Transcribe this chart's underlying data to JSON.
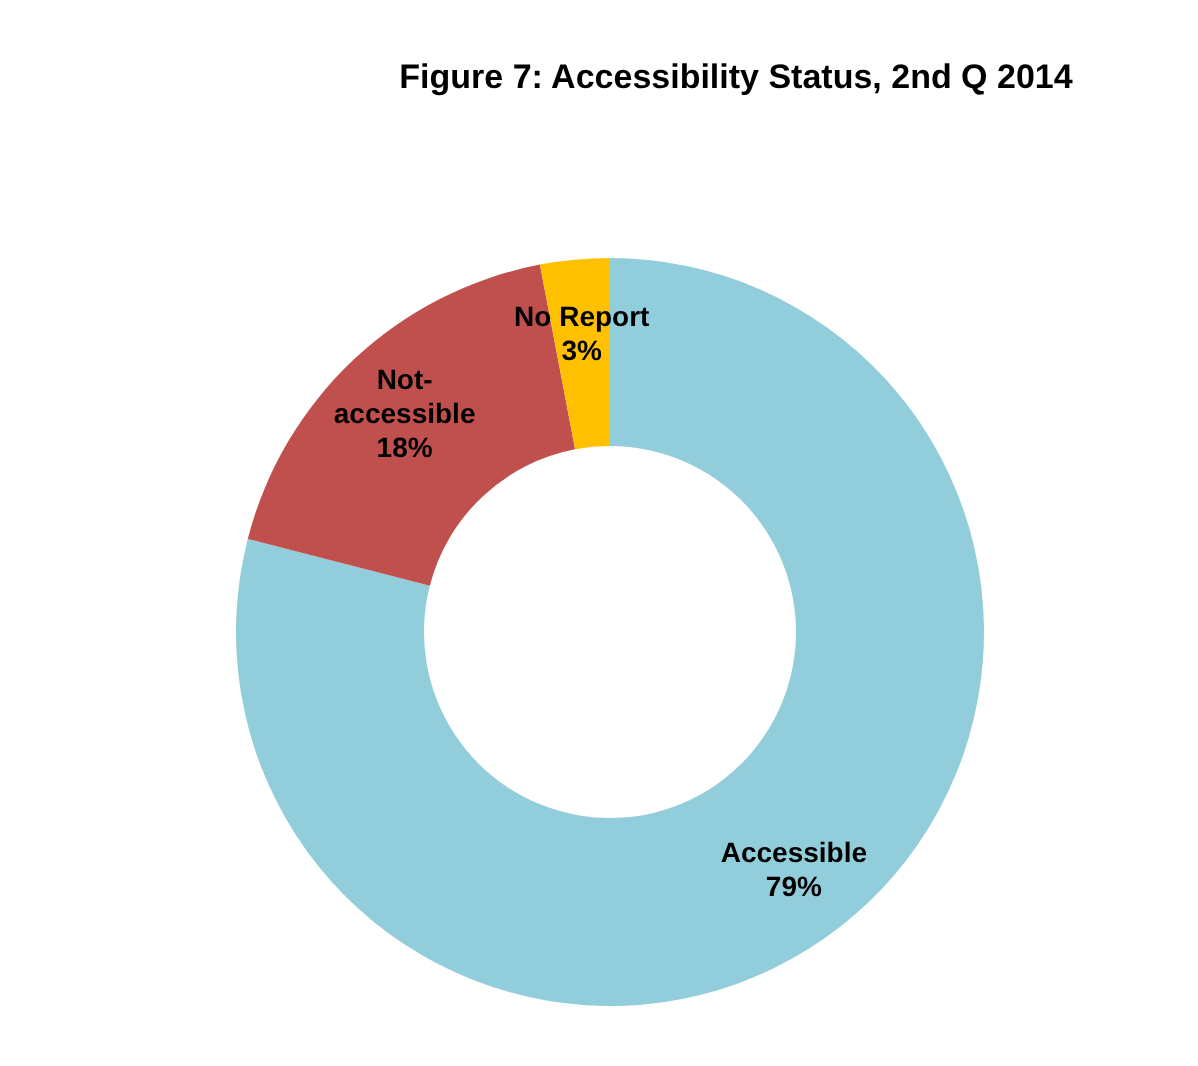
{
  "chart_data": {
    "type": "donut",
    "title": "Figure 7: Accessibility Status, 2nd Q 2014",
    "categories": [
      "Accessible",
      "Not-accessible",
      "No Report"
    ],
    "values": [
      79,
      18,
      3
    ],
    "value_labels": [
      "79%",
      "18%",
      "3%"
    ],
    "colors": [
      "#92cddc",
      "#c0504d",
      "#ffc000"
    ]
  }
}
